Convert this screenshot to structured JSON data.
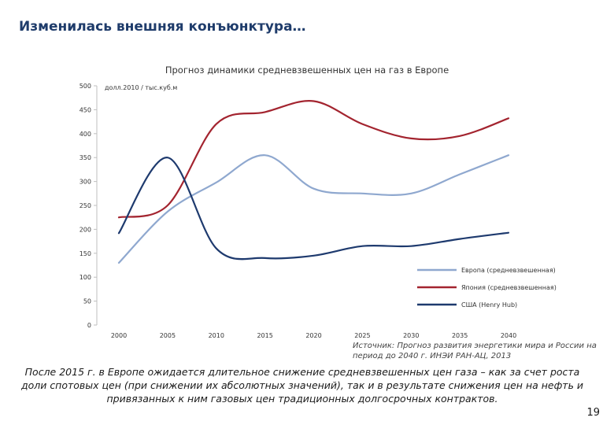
{
  "slide": {
    "title": "Изменилась внешняя конъюнктура…",
    "source": "Источник: Прогноз развития энергетики мира и России на период до 2040 г. ИНЭИ РАН-АЦ, 2013",
    "conclusion": "После 2015 г. в Европе ожидается длительное снижение средневзвешенных цен газа – как за счет роста доли спотовых цен (при снижении их абсолютных значений), так и в результате снижения цен на нефть и привязанных к ним газовых цен традиционных долгосрочных контрактов.",
    "page_number": "19"
  },
  "chart_data": {
    "type": "line",
    "title": "Прогноз динамики средневзвешенных цен на газ в Европе",
    "ylabel": "долл.2010 / тыс.куб.м",
    "xlabel": "",
    "ylim": [
      0,
      500
    ],
    "y_ticks": [
      0,
      50,
      100,
      150,
      200,
      250,
      300,
      350,
      400,
      450,
      500
    ],
    "x": [
      2000,
      2005,
      2010,
      2015,
      2020,
      2025,
      2030,
      2035,
      2040
    ],
    "legend_position": "bottom-right",
    "series": [
      {
        "name": "Европа (средневзвешенная)",
        "color": "#8fa8cf",
        "values": [
          130,
          237,
          298,
          355,
          285,
          275,
          275,
          315,
          355
        ]
      },
      {
        "name": "Япония (средневзвешенная)",
        "color": "#a3242f",
        "values": [
          225,
          250,
          420,
          445,
          468,
          420,
          390,
          395,
          432
        ]
      },
      {
        "name": "США (Henry Hub)",
        "color": "#1e3a6e",
        "values": [
          192,
          350,
          160,
          140,
          145,
          165,
          165,
          180,
          193
        ]
      }
    ]
  }
}
